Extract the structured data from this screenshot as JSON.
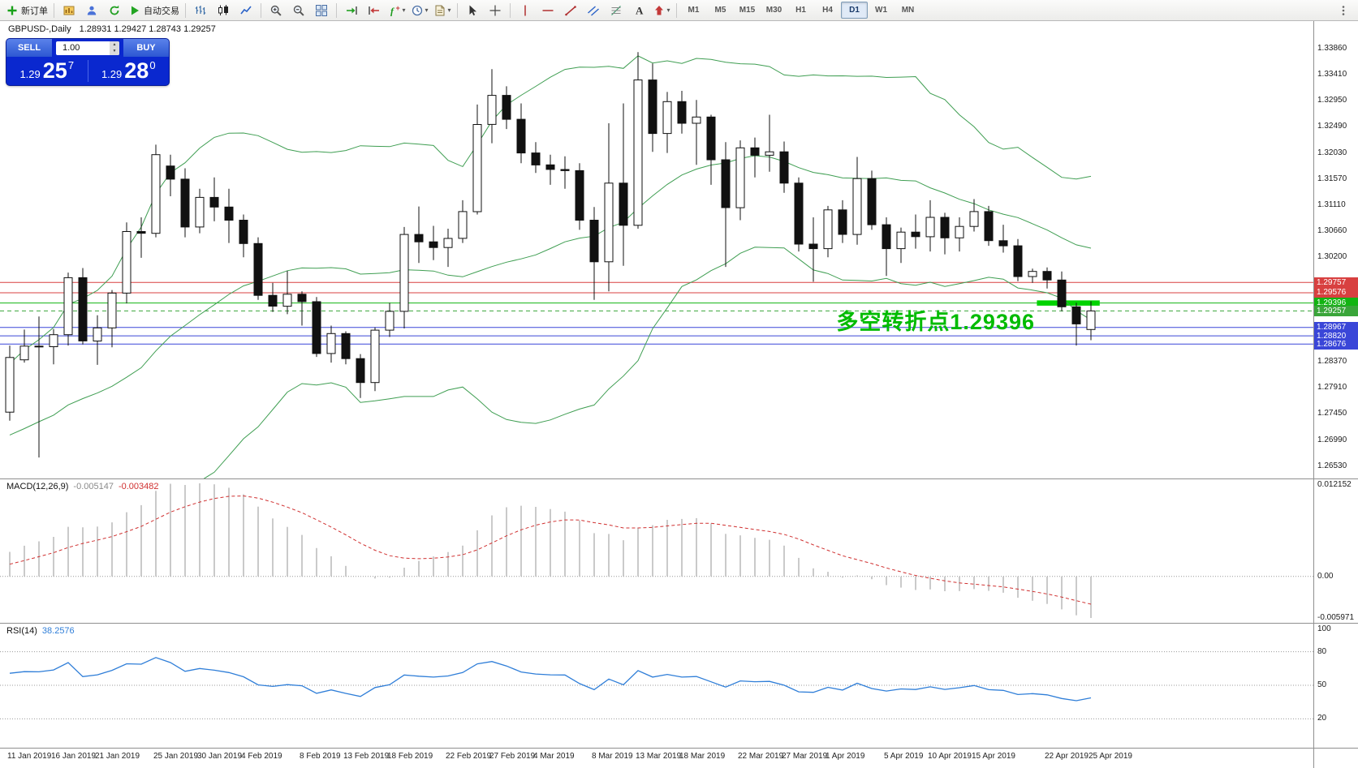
{
  "toolbar": {
    "active_timeframe": "D1",
    "items": [
      {
        "t": "btn",
        "name": "new-order-button",
        "icon": "new-order",
        "label": "新订单"
      },
      {
        "t": "sep"
      },
      {
        "t": "btn",
        "name": "new-chart-button",
        "icon": "new-chart"
      },
      {
        "t": "btn",
        "name": "profiles-button",
        "icon": "profiles"
      },
      {
        "t": "btn",
        "name": "refresh-button",
        "icon": "refresh"
      },
      {
        "t": "btn",
        "name": "autotrading-button",
        "icon": "autoplay",
        "label": "自动交易"
      },
      {
        "t": "sep"
      },
      {
        "t": "btn",
        "name": "bar-chart-button",
        "icon": "bars-chart"
      },
      {
        "t": "btn",
        "name": "candlestick-chart-button",
        "icon": "candles-chart"
      },
      {
        "t": "btn",
        "name": "line-chart-button",
        "icon": "line-chart"
      },
      {
        "t": "sep"
      },
      {
        "t": "btn",
        "name": "zoom-in-button",
        "icon": "zoom-in"
      },
      {
        "t": "btn",
        "name": "zoom-out-button",
        "icon": "zoom-out"
      },
      {
        "t": "btn",
        "name": "tile-windows-button",
        "icon": "tile"
      },
      {
        "t": "sep"
      },
      {
        "t": "btn",
        "name": "auto-scroll-button",
        "icon": "auto-scroll"
      },
      {
        "t": "btn",
        "name": "chart-shift-button",
        "icon": "chart-shift"
      },
      {
        "t": "combo",
        "name": "indicators-dropdown",
        "icon": "indicators"
      },
      {
        "t": "combo",
        "name": "periods-dropdown",
        "icon": "clock"
      },
      {
        "t": "combo",
        "name": "templates-dropdown",
        "icon": "template"
      },
      {
        "t": "sep"
      },
      {
        "t": "btn",
        "name": "cursor-button",
        "icon": "cursor"
      },
      {
        "t": "btn",
        "name": "crosshair-button",
        "icon": "crosshair"
      },
      {
        "t": "sep"
      },
      {
        "t": "btn",
        "name": "vertical-line-button",
        "icon": "vline"
      },
      {
        "t": "btn",
        "name": "horizontal-line-button",
        "icon": "hline"
      },
      {
        "t": "btn",
        "name": "trendline-button",
        "icon": "trendline"
      },
      {
        "t": "btn",
        "name": "channel-button",
        "icon": "channel"
      },
      {
        "t": "btn",
        "name": "fibonacci-button",
        "icon": "fibo"
      },
      {
        "t": "btn",
        "name": "text-button",
        "icon": "text"
      },
      {
        "t": "combo",
        "name": "arrows-dropdown",
        "icon": "arrows"
      },
      {
        "t": "sep"
      },
      {
        "t": "tf",
        "label": "M1"
      },
      {
        "t": "tf",
        "label": "M5"
      },
      {
        "t": "tf",
        "label": "M15"
      },
      {
        "t": "tf",
        "label": "M30"
      },
      {
        "t": "tf",
        "label": "H1"
      },
      {
        "t": "tf",
        "label": "H4"
      },
      {
        "t": "tf",
        "label": "D1"
      },
      {
        "t": "tf",
        "label": "W1"
      },
      {
        "t": "tf",
        "label": "MN"
      },
      {
        "t": "btn",
        "name": "toolbar-overflow-button",
        "icon": "overflow",
        "push_right": true
      }
    ]
  },
  "one_click": {
    "sell_label": "SELL",
    "buy_label": "BUY",
    "volume": "1.00",
    "sell_price": "1.29",
    "sell_pips": "25",
    "sell_sup": "7",
    "buy_price": "1.29",
    "buy_pips": "28",
    "buy_sup": "0"
  },
  "chart_data": {
    "type": "candlestick",
    "symbol_title": "GBPUSD-,Daily",
    "ohlc_line": "1.28931 1.29427 1.28743 1.29257",
    "annotation": {
      "text": "多空转折点1.29396",
      "color": "#00bb00"
    },
    "bollinger": {
      "period": 20,
      "deviation": 2,
      "color": "#3f9e52"
    },
    "price_lines": [
      {
        "label": "1.29757",
        "value": 1.29757,
        "color": "#d84040",
        "style": "solid"
      },
      {
        "label": "1.29576",
        "value": 1.29576,
        "color": "#d84040",
        "style": "solid"
      },
      {
        "label": "1.29396",
        "value": 1.29396,
        "color": "#12b412",
        "style": "solid"
      },
      {
        "label": "1.29257",
        "value": 1.29257,
        "color": "#3aa53a",
        "style": "dash"
      },
      {
        "label": "1.28967",
        "value": 1.28967,
        "color": "#3a46d8",
        "style": "solid"
      },
      {
        "label": "1.28820",
        "value": 1.2882,
        "color": "#3a46d8",
        "style": "solid"
      },
      {
        "label": "1.28676",
        "value": 1.28676,
        "color": "#3a46d8",
        "style": "solid"
      }
    ],
    "highlight_bar": {
      "value": 1.29396,
      "from_index": 70.3,
      "to_index": 74.6,
      "color": "#00d300"
    },
    "y_ticks": [
      "1.33860",
      "1.33410",
      "1.32950",
      "1.32490",
      "1.32030",
      "1.31570",
      "1.31110",
      "1.30660",
      "1.30200",
      "1.28370",
      "1.27910",
      "1.27450",
      "1.26990",
      "1.26530"
    ],
    "date_labels": [
      {
        "label": "11 Jan 2019",
        "index": 0
      },
      {
        "label": "16 Jan 2019",
        "index": 3
      },
      {
        "label": "21 Jan 2019",
        "index": 6
      },
      {
        "label": "25 Jan 2019",
        "index": 10
      },
      {
        "label": "30 Jan 2019",
        "index": 13
      },
      {
        "label": "4 Feb 2019",
        "index": 16
      },
      {
        "label": "8 Feb 2019",
        "index": 20
      },
      {
        "label": "13 Feb 2019",
        "index": 23
      },
      {
        "label": "18 Feb 2019",
        "index": 26
      },
      {
        "label": "22 Feb 2019",
        "index": 30
      },
      {
        "label": "27 Feb 2019",
        "index": 33
      },
      {
        "label": "4 Mar 2019",
        "index": 36
      },
      {
        "label": "8 Mar 2019",
        "index": 40
      },
      {
        "label": "13 Mar 2019",
        "index": 43
      },
      {
        "label": "18 Mar 2019",
        "index": 46
      },
      {
        "label": "22 Mar 2019",
        "index": 50
      },
      {
        "label": "27 Mar 2019",
        "index": 53
      },
      {
        "label": "1 Apr 2019",
        "index": 56
      },
      {
        "label": "5 Apr 2019",
        "index": 60
      },
      {
        "label": "10 Apr 2019",
        "index": 63
      },
      {
        "label": "15 Apr 2019",
        "index": 66
      },
      {
        "label": "22 Apr 2019",
        "index": 71
      },
      {
        "label": "25 Apr 2019",
        "index": 74
      }
    ],
    "warmup_closes": [
      1.2715,
      1.269,
      1.2655,
      1.262,
      1.259,
      1.2625,
      1.2655,
      1.27,
      1.264,
      1.262,
      1.2655,
      1.2625,
      1.265,
      1.27,
      1.272,
      1.275,
      1.2725,
      1.261,
      1.264,
      1.27,
      1.2745,
      1.276,
      1.272,
      1.2745,
      1.279,
      1.275,
      1.277
    ],
    "candles": [
      [
        1.2748,
        1.2865,
        1.2733,
        1.2844
      ],
      [
        1.284,
        1.2893,
        1.2835,
        1.2864
      ],
      [
        1.2864,
        1.2916,
        1.26685,
        1.2863
      ],
      [
        1.2863,
        1.2894,
        1.2832,
        1.2884
      ],
      [
        1.2884,
        1.2993,
        1.2865,
        1.2984
      ],
      [
        1.2984,
        1.3001,
        1.2867,
        1.2873
      ],
      [
        1.2873,
        1.2918,
        1.2831,
        1.2896
      ],
      [
        1.2896,
        1.29625,
        1.2862,
        1.2957
      ],
      [
        1.2957,
        1.3081,
        1.2939,
        1.3065
      ],
      [
        1.3065,
        1.309,
        1.3019,
        1.3062
      ],
      [
        1.3062,
        1.32175,
        1.3055,
        1.32
      ],
      [
        1.318,
        1.32,
        1.3127,
        1.3157
      ],
      [
        1.3157,
        1.3176,
        1.3055,
        1.3073
      ],
      [
        1.3073,
        1.314,
        1.3062,
        1.3125
      ],
      [
        1.3125,
        1.316,
        1.3083,
        1.3108
      ],
      [
        1.3108,
        1.314,
        1.3045,
        1.3085
      ],
      [
        1.3085,
        1.3095,
        1.302,
        1.3044
      ],
      [
        1.3044,
        1.3055,
        1.2945,
        1.2953
      ],
      [
        1.2953,
        1.2975,
        1.2924,
        1.2934
      ],
      [
        1.2934,
        1.2996,
        1.292,
        1.2955
      ],
      [
        1.2955,
        1.296,
        1.29,
        1.2942
      ],
      [
        1.2942,
        1.295,
        1.2845,
        1.2851
      ],
      [
        1.2851,
        1.29,
        1.2835,
        1.2886
      ],
      [
        1.2886,
        1.289,
        1.2832,
        1.2842
      ],
      [
        1.2842,
        1.285,
        1.2773,
        1.28
      ],
      [
        1.28,
        1.2897,
        1.2785,
        1.2892
      ],
      [
        1.2892,
        1.294,
        1.288,
        1.2925
      ],
      [
        1.2925,
        1.3073,
        1.2895,
        1.306
      ],
      [
        1.306,
        1.3109,
        1.301,
        1.3047
      ],
      [
        1.3047,
        1.3075,
        1.3015,
        1.3037
      ],
      [
        1.3037,
        1.307,
        1.3003,
        1.3053
      ],
      [
        1.3053,
        1.312,
        1.3045,
        1.31
      ],
      [
        1.31,
        1.3288,
        1.3095,
        1.3253
      ],
      [
        1.3253,
        1.335,
        1.322,
        1.3304
      ],
      [
        1.3304,
        1.332,
        1.3245,
        1.3262
      ],
      [
        1.3262,
        1.329,
        1.3185,
        1.3203
      ],
      [
        1.3203,
        1.3222,
        1.3168,
        1.3182
      ],
      [
        1.3182,
        1.32,
        1.3147,
        1.3174
      ],
      [
        1.3174,
        1.3197,
        1.314,
        1.3172
      ],
      [
        1.3172,
        1.3185,
        1.3068,
        1.3085
      ],
      [
        1.3085,
        1.3108,
        1.2945,
        1.3012
      ],
      [
        1.3012,
        1.3255,
        1.296,
        1.315
      ],
      [
        1.315,
        1.329,
        1.3005,
        1.3076
      ],
      [
        1.3076,
        1.338,
        1.307,
        1.3331
      ],
      [
        1.3331,
        1.336,
        1.3205,
        1.3237
      ],
      [
        1.3237,
        1.331,
        1.3203,
        1.3293
      ],
      [
        1.3293,
        1.3312,
        1.3237,
        1.3255
      ],
      [
        1.3255,
        1.3296,
        1.3182,
        1.3266
      ],
      [
        1.3266,
        1.327,
        1.3147,
        1.3191
      ],
      [
        1.3191,
        1.3222,
        1.3003,
        1.3107
      ],
      [
        1.3107,
        1.3225,
        1.3085,
        1.3212
      ],
      [
        1.3212,
        1.323,
        1.316,
        1.3199
      ],
      [
        1.3199,
        1.327,
        1.317,
        1.3205
      ],
      [
        1.3205,
        1.3223,
        1.3133,
        1.315
      ],
      [
        1.315,
        1.316,
        1.303,
        1.3043
      ],
      [
        1.3043,
        1.309,
        1.2977,
        1.3035
      ],
      [
        1.3035,
        1.311,
        1.302,
        1.3103
      ],
      [
        1.3103,
        1.312,
        1.3045,
        1.306
      ],
      [
        1.306,
        1.3196,
        1.3042,
        1.3158
      ],
      [
        1.3158,
        1.3172,
        1.3068,
        1.3077
      ],
      [
        1.3077,
        1.309,
        1.2987,
        1.3035
      ],
      [
        1.3035,
        1.3072,
        1.301,
        1.3064
      ],
      [
        1.3064,
        1.3095,
        1.3035,
        1.3056
      ],
      [
        1.3056,
        1.312,
        1.303,
        1.309
      ],
      [
        1.309,
        1.3098,
        1.3025,
        1.3054
      ],
      [
        1.3054,
        1.309,
        1.303,
        1.3074
      ],
      [
        1.3074,
        1.3122,
        1.3065,
        1.31
      ],
      [
        1.31,
        1.311,
        1.304,
        1.3049
      ],
      [
        1.3049,
        1.3077,
        1.3028,
        1.304
      ],
      [
        1.304,
        1.3052,
        1.2978,
        1.2986
      ],
      [
        1.2986,
        1.3,
        1.2975,
        1.2995
      ],
      [
        1.2995,
        1.3002,
        1.2965,
        1.298
      ],
      [
        1.298,
        1.2995,
        1.2925,
        1.2933
      ],
      [
        1.2933,
        1.294,
        1.2865,
        1.2903
      ],
      [
        1.28931,
        1.29427,
        1.28743,
        1.29257
      ]
    ],
    "macd": {
      "name": "MACD(12,26,9)",
      "value_main": "-0.005147",
      "value_signal": "-0.003482",
      "scale_top": "0.012152",
      "scale_zero": "0.00",
      "scale_bottom": "-0.005971",
      "hist_color": "#b4b4b4",
      "signal_color": "#d03030"
    },
    "rsi": {
      "name": "RSI(14)",
      "value": "38.2576",
      "color": "#2f7ed8",
      "levels": [
        {
          "label": "100",
          "value": 100
        },
        {
          "label": "80",
          "value": 80
        },
        {
          "label": "50",
          "value": 50
        },
        {
          "label": "20",
          "value": 20
        }
      ],
      "level_lines": [
        80,
        50,
        20
      ]
    }
  }
}
